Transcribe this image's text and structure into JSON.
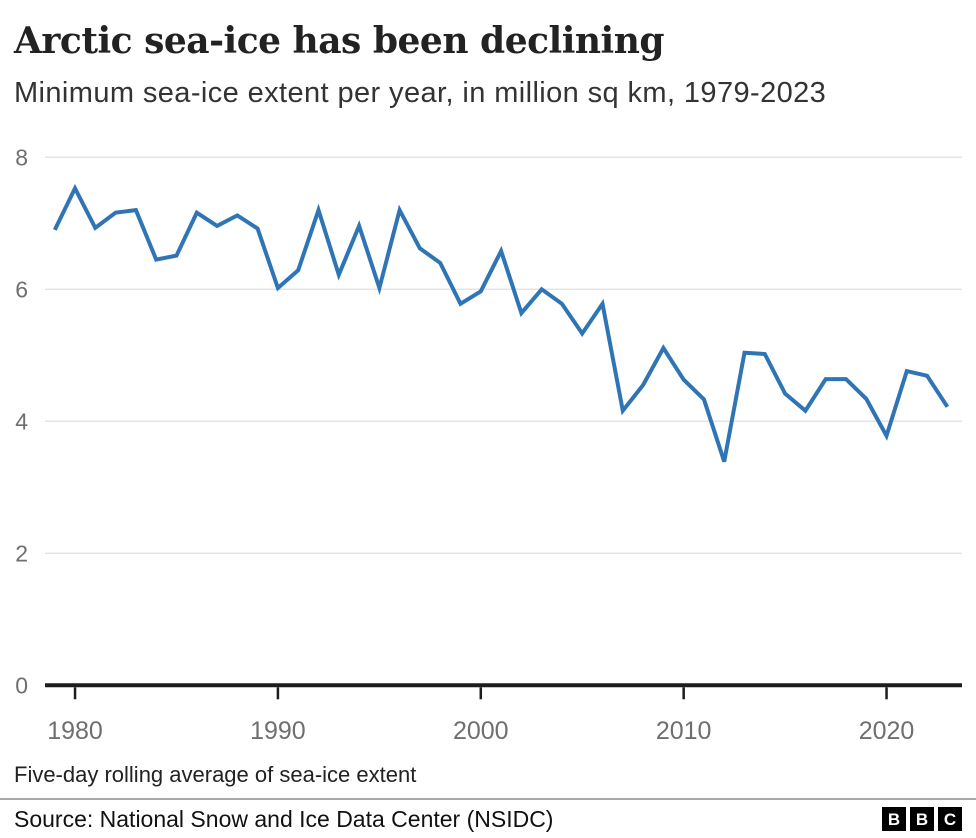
{
  "chart_data": {
    "type": "line",
    "title": "Arctic sea-ice has been declining",
    "subtitle": "Minimum sea-ice extent per year, in million sq km, 1979-2023",
    "series_name": "Minimum sea-ice extent",
    "xlabel": "",
    "ylabel": "million sq km",
    "x": [
      1979,
      1980,
      1981,
      1982,
      1983,
      1984,
      1985,
      1986,
      1987,
      1988,
      1989,
      1990,
      1991,
      1992,
      1993,
      1994,
      1995,
      1996,
      1997,
      1998,
      1999,
      2000,
      2001,
      2002,
      2003,
      2004,
      2005,
      2006,
      2007,
      2008,
      2009,
      2010,
      2011,
      2012,
      2013,
      2014,
      2015,
      2016,
      2017,
      2018,
      2019,
      2020,
      2021,
      2022,
      2023
    ],
    "values": [
      6.9,
      7.53,
      6.93,
      7.16,
      7.2,
      6.45,
      6.51,
      7.16,
      6.96,
      7.12,
      6.92,
      6.02,
      6.29,
      7.2,
      6.22,
      6.96,
      6.02,
      7.2,
      6.62,
      6.4,
      5.78,
      5.97,
      6.58,
      5.64,
      6.0,
      5.78,
      5.33,
      5.78,
      4.16,
      4.55,
      5.11,
      4.63,
      4.33,
      3.39,
      5.04,
      5.02,
      4.42,
      4.16,
      4.64,
      4.64,
      4.34,
      3.78,
      4.76,
      4.69,
      4.22
    ],
    "ylim": [
      0,
      8
    ],
    "xlim": [
      1978.5,
      2023.8
    ],
    "y_ticks": [
      8,
      6,
      4,
      2,
      0
    ],
    "x_ticks": [
      1980,
      1990,
      2000,
      2010,
      2020
    ],
    "grid": true,
    "legend": false
  },
  "footnote": "Five-day rolling average of sea-ice extent",
  "source": "Source: National Snow and Ice Data Center (NSIDC)",
  "logo": {
    "letters": [
      "B",
      "B",
      "C"
    ]
  },
  "colors": {
    "line": "#2F75B5",
    "grid": "#e4e4e4",
    "axis": "#1d1d1b",
    "tick_label": "#6f6f6f",
    "title": "#222222",
    "subtitle": "#333333",
    "divider": "#a8a8a8"
  }
}
